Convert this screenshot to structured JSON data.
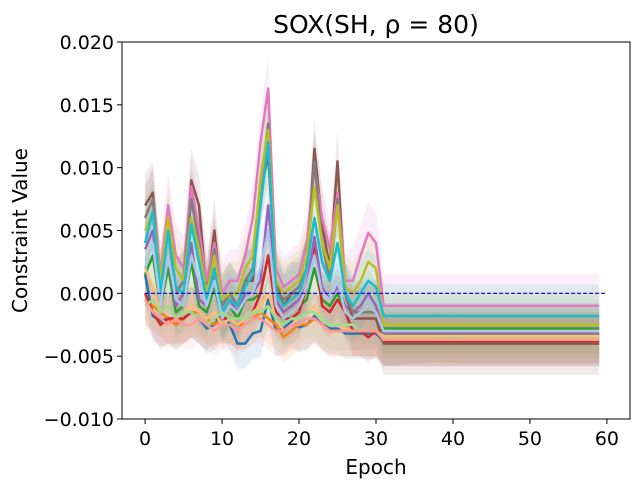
{
  "chart_data": {
    "type": "line",
    "title": "SOX(SH, ρ = 80)",
    "xlabel": "Epoch",
    "ylabel": "Constraint Value",
    "xlim": [
      -3,
      63
    ],
    "ylim": [
      -0.01,
      0.02
    ],
    "xticks": [
      0,
      10,
      20,
      30,
      40,
      50,
      60
    ],
    "xtick_labels": [
      "0",
      "10",
      "20",
      "30",
      "40",
      "50",
      "60"
    ],
    "yticks": [
      -0.01,
      -0.005,
      0.0,
      0.005,
      0.01,
      0.015,
      0.02
    ],
    "ytick_labels": [
      "−0.010",
      "−0.005",
      "0.000",
      "0.005",
      "0.010",
      "0.015",
      "0.020"
    ],
    "grid": false,
    "legend": "none",
    "reference_line": {
      "y": 0.0,
      "style": "dashed",
      "color": "#0000cc"
    },
    "x": [
      0,
      1,
      2,
      3,
      4,
      5,
      6,
      7,
      8,
      9,
      10,
      11,
      12,
      13,
      14,
      15,
      16,
      17,
      18,
      19,
      20,
      21,
      22,
      23,
      24,
      25,
      26,
      27,
      28,
      29,
      30,
      31,
      32,
      33,
      34,
      35,
      36,
      37,
      38,
      39,
      40,
      41,
      42,
      43,
      44,
      45,
      46,
      47,
      48,
      49,
      50,
      51,
      52,
      53,
      54,
      55,
      56,
      57,
      58,
      59
    ],
    "series": [
      {
        "color": "#1f77b4",
        "band": 0.002,
        "values": [
          0.0015,
          -0.0018,
          -0.0022,
          -0.002,
          -0.0025,
          -0.002,
          -0.0015,
          -0.002,
          -0.0028,
          -0.0025,
          -0.0015,
          -0.0025,
          -0.004,
          -0.004,
          -0.0032,
          -0.003,
          -0.0005,
          -0.003,
          -0.0028,
          -0.0022,
          -0.0027,
          -0.0025,
          -0.0018,
          -0.0025,
          -0.0028,
          -0.0028,
          -0.0032,
          -0.0032,
          -0.0032,
          -0.0032,
          -0.0032,
          -0.0038,
          -0.0037,
          -0.0037,
          -0.0036,
          -0.0036,
          -0.0036,
          -0.0035,
          -0.0035,
          -0.0035,
          -0.0035,
          -0.0036,
          -0.0036,
          -0.0036,
          -0.0036,
          -0.0036,
          -0.0036,
          -0.0036,
          -0.0036,
          -0.0036,
          -0.0036,
          -0.0036,
          -0.0036,
          -0.0036,
          -0.0036,
          -0.0036,
          -0.0036,
          -0.0036,
          -0.0036,
          -0.0036
        ]
      },
      {
        "color": "#ff7f0e",
        "band": 0.002,
        "values": [
          -0.0005,
          -0.001,
          -0.0015,
          -0.002,
          -0.0025,
          -0.002,
          -0.0015,
          -0.0015,
          -0.002,
          -0.0025,
          -0.002,
          -0.002,
          -0.0025,
          -0.0025,
          -0.002,
          -0.0015,
          -0.002,
          -0.0025,
          -0.0035,
          -0.003,
          -0.0025,
          -0.0025,
          -0.002,
          -0.0025,
          -0.003,
          -0.003,
          -0.003,
          -0.003,
          -0.003,
          -0.003,
          -0.003,
          -0.0035,
          -0.0035,
          -0.0035,
          -0.0035,
          -0.0035,
          -0.0035,
          -0.0035,
          -0.0035,
          -0.0036,
          -0.0036,
          -0.0036,
          -0.0035,
          -0.0035,
          -0.0035,
          -0.0035,
          -0.0035,
          -0.0035,
          -0.0035,
          -0.0035,
          -0.0035,
          -0.0035,
          -0.0035,
          -0.0035,
          -0.0035,
          -0.0035,
          -0.0035,
          -0.0035,
          -0.0035,
          -0.0035
        ]
      },
      {
        "color": "#2ca02c",
        "band": 0.002,
        "values": [
          0.0015,
          0.003,
          -0.001,
          0.002,
          -0.0015,
          -0.001,
          0.0025,
          -0.001,
          -0.0015,
          0.0005,
          -0.002,
          -0.001,
          -0.002,
          -0.0005,
          -0.0005,
          0.0,
          0.003,
          -0.001,
          -0.002,
          -0.0015,
          -0.001,
          -0.0005,
          0.002,
          -0.0005,
          -0.001,
          0.0,
          -0.0015,
          -0.002,
          -0.0015,
          -0.001,
          -0.0015,
          -0.0028,
          -0.0028,
          -0.0028,
          -0.0028,
          -0.0028,
          -0.0028,
          -0.0028,
          -0.0028,
          -0.0028,
          -0.0028,
          -0.0028,
          -0.0028,
          -0.0028,
          -0.0028,
          -0.0028,
          -0.0028,
          -0.0028,
          -0.0028,
          -0.0028,
          -0.0028,
          -0.0028,
          -0.0028,
          -0.0028,
          -0.0028,
          -0.0028,
          -0.0028,
          -0.0028,
          -0.0028,
          -0.0028
        ]
      },
      {
        "color": "#d62728",
        "band": 0.002,
        "values": [
          0.0,
          -0.0015,
          -0.0025,
          -0.002,
          -0.002,
          -0.002,
          -0.0015,
          -0.002,
          -0.0025,
          -0.002,
          -0.002,
          -0.002,
          -0.0025,
          -0.002,
          -0.0015,
          0.0,
          0.003,
          -0.0015,
          -0.002,
          -0.002,
          -0.0015,
          0.0005,
          0.004,
          -0.001,
          -0.0015,
          -0.0005,
          -0.0015,
          -0.003,
          -0.003,
          -0.0035,
          -0.003,
          -0.0038,
          -0.0038,
          -0.0038,
          -0.0038,
          -0.0038,
          -0.0038,
          -0.0038,
          -0.0038,
          -0.0038,
          -0.0038,
          -0.0038,
          -0.0038,
          -0.0038,
          -0.0038,
          -0.0038,
          -0.0038,
          -0.0038,
          -0.0038,
          -0.0038,
          -0.0038,
          -0.0038,
          -0.0038,
          -0.0038,
          -0.0038,
          -0.0038,
          -0.0038,
          -0.0038,
          -0.0038,
          -0.0038
        ]
      },
      {
        "color": "#9467bd",
        "band": 0.002,
        "values": [
          0.0035,
          0.005,
          -0.0005,
          0.003,
          -0.001,
          0.0,
          0.004,
          -0.0005,
          -0.001,
          0.0015,
          -0.0015,
          -0.0005,
          -0.0015,
          0.0,
          0.0,
          0.001,
          0.007,
          -0.0005,
          -0.0015,
          -0.001,
          -0.0005,
          0.0005,
          0.0045,
          0.0005,
          -0.0005,
          0.0005,
          -0.001,
          -0.0015,
          -0.001,
          0.0,
          -0.001,
          -0.0032,
          -0.0032,
          -0.0032,
          -0.0032,
          -0.0032,
          -0.0032,
          -0.0032,
          -0.0032,
          -0.0032,
          -0.0032,
          -0.0032,
          -0.0032,
          -0.0032,
          -0.0032,
          -0.0032,
          -0.0032,
          -0.0032,
          -0.0032,
          -0.0032,
          -0.0032,
          -0.0032,
          -0.0032,
          -0.0032,
          -0.0032,
          -0.0032,
          -0.0032,
          -0.0032,
          -0.0032,
          -0.0032
        ]
      },
      {
        "color": "#8c564b",
        "band": 0.0025,
        "values": [
          0.007,
          0.008,
          0.001,
          0.005,
          0.0,
          0.001,
          0.009,
          0.007,
          0.0,
          0.005,
          -0.001,
          0.0,
          -0.001,
          0.001,
          0.001,
          0.008,
          0.011,
          0.001,
          -0.001,
          0.0,
          0.0,
          0.002,
          0.0115,
          0.0055,
          0.002,
          0.0105,
          0.0,
          -0.002,
          -0.002,
          -0.002,
          -0.002,
          -0.004,
          -0.004,
          -0.004,
          -0.004,
          -0.004,
          -0.004,
          -0.004,
          -0.004,
          -0.004,
          -0.004,
          -0.004,
          -0.004,
          -0.004,
          -0.004,
          -0.004,
          -0.004,
          -0.004,
          -0.004,
          -0.004,
          -0.004,
          -0.004,
          -0.004,
          -0.004,
          -0.004,
          -0.004,
          -0.004,
          -0.004,
          -0.004,
          -0.004
        ]
      },
      {
        "color": "#e377c2",
        "band": 0.0025,
        "values": [
          0.006,
          0.0075,
          0.0015,
          0.007,
          0.003,
          0.002,
          0.0085,
          0.005,
          0.001,
          0.004,
          0.0,
          0.001,
          0.001,
          0.003,
          0.006,
          0.012,
          0.0163,
          0.002,
          0.0005,
          0.001,
          0.0015,
          0.004,
          0.01,
          0.006,
          0.0035,
          0.008,
          0.001,
          0.001,
          0.003,
          0.0048,
          0.004,
          -0.001,
          -0.001,
          -0.001,
          -0.001,
          -0.001,
          -0.001,
          -0.001,
          -0.001,
          -0.001,
          -0.001,
          -0.001,
          -0.001,
          -0.001,
          -0.001,
          -0.001,
          -0.001,
          -0.001,
          -0.001,
          -0.001,
          -0.001,
          -0.001,
          -0.001,
          -0.001,
          -0.001,
          -0.001,
          -0.001,
          -0.001,
          -0.001,
          -0.001
        ]
      },
      {
        "color": "#7f7f7f",
        "band": 0.0025,
        "values": [
          0.006,
          0.0075,
          0.0005,
          0.005,
          0.0,
          0.001,
          0.0075,
          0.004,
          0.0,
          0.0035,
          -0.001,
          0.0,
          -0.001,
          0.001,
          0.002,
          0.008,
          0.0135,
          0.0005,
          -0.0005,
          0.0,
          0.0005,
          0.002,
          0.0105,
          0.004,
          0.001,
          0.0075,
          0.0,
          -0.0015,
          -0.0015,
          -0.0015,
          -0.0015,
          -0.0033,
          -0.0033,
          -0.0033,
          -0.0033,
          -0.0033,
          -0.0033,
          -0.0033,
          -0.0033,
          -0.0033,
          -0.0033,
          -0.0033,
          -0.0033,
          -0.0033,
          -0.0033,
          -0.0033,
          -0.0033,
          -0.0033,
          -0.0033,
          -0.0033,
          -0.0033,
          -0.0033,
          -0.0033,
          -0.0033,
          -0.0033,
          -0.0033,
          -0.0033,
          -0.0033,
          -0.0033,
          -0.0033
        ]
      },
      {
        "color": "#bcbd22",
        "band": 0.0025,
        "values": [
          0.005,
          0.0065,
          0.001,
          0.006,
          0.002,
          0.001,
          0.006,
          0.0035,
          0.0,
          0.003,
          -0.0005,
          0.0,
          0.0,
          0.002,
          0.003,
          0.009,
          0.013,
          0.001,
          0.0,
          0.0005,
          0.001,
          0.003,
          0.0085,
          0.004,
          0.002,
          0.007,
          0.0005,
          0.0,
          0.001,
          0.0025,
          0.002,
          -0.0025,
          -0.0025,
          -0.0025,
          -0.0025,
          -0.0025,
          -0.0025,
          -0.0025,
          -0.0025,
          -0.0025,
          -0.0025,
          -0.0025,
          -0.0025,
          -0.0025,
          -0.0025,
          -0.0025,
          -0.0025,
          -0.0025,
          -0.0025,
          -0.0025,
          -0.0025,
          -0.0025,
          -0.0025,
          -0.0025,
          -0.0025,
          -0.0025,
          -0.0025,
          -0.0025,
          -0.0025,
          -0.0025
        ]
      },
      {
        "color": "#17becf",
        "band": 0.0025,
        "values": [
          0.004,
          0.0065,
          0.0,
          0.005,
          0.0005,
          0.0,
          0.0055,
          0.0025,
          -0.0005,
          0.002,
          -0.0015,
          -0.0005,
          -0.001,
          0.0005,
          0.0015,
          0.007,
          0.012,
          0.0,
          -0.001,
          -0.0005,
          0.0,
          0.002,
          0.006,
          0.0025,
          0.001,
          0.004,
          0.0,
          -0.001,
          0.0,
          0.001,
          0.0005,
          -0.0018,
          -0.0018,
          -0.0018,
          -0.0018,
          -0.0018,
          -0.0018,
          -0.0018,
          -0.0018,
          -0.0018,
          -0.0018,
          -0.0018,
          -0.0018,
          -0.0018,
          -0.0018,
          -0.0018,
          -0.0018,
          -0.0018,
          -0.0018,
          -0.0018,
          -0.0018,
          -0.0018,
          -0.0018,
          -0.0018,
          -0.0018,
          -0.0018,
          -0.0018,
          -0.0018,
          -0.0018,
          -0.0018
        ]
      },
      {
        "color": "#aec7e8",
        "band": 0.0025,
        "values": [
          0.002,
          0.004,
          -0.001,
          0.003,
          -0.0005,
          -0.001,
          0.003,
          0.001,
          -0.001,
          0.001,
          -0.002,
          -0.001,
          -0.0015,
          -0.0005,
          0.0,
          0.002,
          0.005,
          -0.001,
          -0.002,
          -0.0015,
          -0.001,
          0.0005,
          0.003,
          0.0,
          -0.0005,
          0.001,
          -0.0015,
          -0.002,
          -0.0015,
          -0.001,
          -0.0015,
          -0.003,
          -0.003,
          -0.003,
          -0.003,
          -0.003,
          -0.003,
          -0.003,
          -0.003,
          -0.003,
          -0.003,
          -0.003,
          -0.003,
          -0.003,
          -0.003,
          -0.003,
          -0.003,
          -0.003,
          -0.003,
          -0.003,
          -0.003,
          -0.003,
          -0.003,
          -0.003,
          -0.003,
          -0.003,
          -0.003,
          -0.003,
          -0.003,
          -0.003
        ]
      },
      {
        "color": "#ffbb78",
        "band": 0.002,
        "values": [
          0.002,
          0.0005,
          -0.0015,
          -0.001,
          -0.002,
          -0.0015,
          -0.001,
          -0.0015,
          -0.002,
          -0.0015,
          -0.0025,
          -0.002,
          -0.0025,
          -0.002,
          -0.0015,
          -0.001,
          0.0,
          -0.002,
          -0.003,
          -0.0025,
          -0.002,
          -0.0015,
          -0.001,
          -0.002,
          -0.0025,
          -0.0025,
          -0.0028,
          -0.003,
          -0.003,
          -0.003,
          -0.003,
          -0.0034,
          -0.0034,
          -0.0034,
          -0.0034,
          -0.0034,
          -0.0034,
          -0.0034,
          -0.0034,
          -0.0034,
          -0.0034,
          -0.0034,
          -0.0034,
          -0.0034,
          -0.0034,
          -0.0034,
          -0.0034,
          -0.0034,
          -0.0034,
          -0.0034,
          -0.0034,
          -0.0034,
          -0.0034,
          -0.0034,
          -0.0034,
          -0.0034,
          -0.0034,
          -0.0034,
          -0.0034,
          -0.0034
        ]
      },
      {
        "color": "#98df8a",
        "band": 0.002,
        "values": [
          -0.001,
          -0.0005,
          -0.0015,
          -0.001,
          -0.002,
          -0.0015,
          -0.0015,
          -0.002,
          -0.0025,
          -0.002,
          -0.0015,
          -0.002,
          -0.002,
          -0.002,
          -0.0015,
          -0.0015,
          -0.001,
          -0.002,
          -0.0025,
          -0.002,
          -0.002,
          -0.0015,
          -0.0015,
          -0.002,
          -0.0025,
          -0.0025,
          -0.0025,
          -0.0025,
          -0.003,
          -0.003,
          -0.003,
          -0.0036,
          -0.0036,
          -0.0036,
          -0.0036,
          -0.0036,
          -0.0036,
          -0.0036,
          -0.0036,
          -0.0036,
          -0.0036,
          -0.0036,
          -0.0036,
          -0.0036,
          -0.0036,
          -0.0036,
          -0.0036,
          -0.0036,
          -0.0036,
          -0.0036,
          -0.0036,
          -0.0036,
          -0.0036,
          -0.0036,
          -0.0036,
          -0.0036,
          -0.0036,
          -0.0036,
          -0.0036,
          -0.0036
        ]
      },
      {
        "color": "#ff9896",
        "band": 0.002,
        "values": [
          -0.0005,
          -0.0015,
          -0.002,
          -0.0025,
          -0.002,
          -0.0025,
          -0.0025,
          -0.002,
          -0.0025,
          -0.003,
          -0.0025,
          -0.0025,
          -0.003,
          -0.0025,
          -0.002,
          -0.002,
          -0.0025,
          -0.003,
          -0.003,
          -0.0025,
          -0.0025,
          -0.002,
          -0.002,
          -0.0025,
          -0.003,
          -0.003,
          -0.003,
          -0.003,
          -0.003,
          -0.003,
          -0.003,
          -0.0037,
          -0.0037,
          -0.0037,
          -0.0037,
          -0.0037,
          -0.0037,
          -0.0037,
          -0.0037,
          -0.0037,
          -0.0037,
          -0.0037,
          -0.0037,
          -0.0037,
          -0.0037,
          -0.0037,
          -0.0037,
          -0.0037,
          -0.0037,
          -0.0037,
          -0.0037,
          -0.0037,
          -0.0037,
          -0.0037,
          -0.0037,
          -0.0037,
          -0.0037,
          -0.0037,
          -0.0037,
          -0.0037
        ]
      }
    ]
  }
}
